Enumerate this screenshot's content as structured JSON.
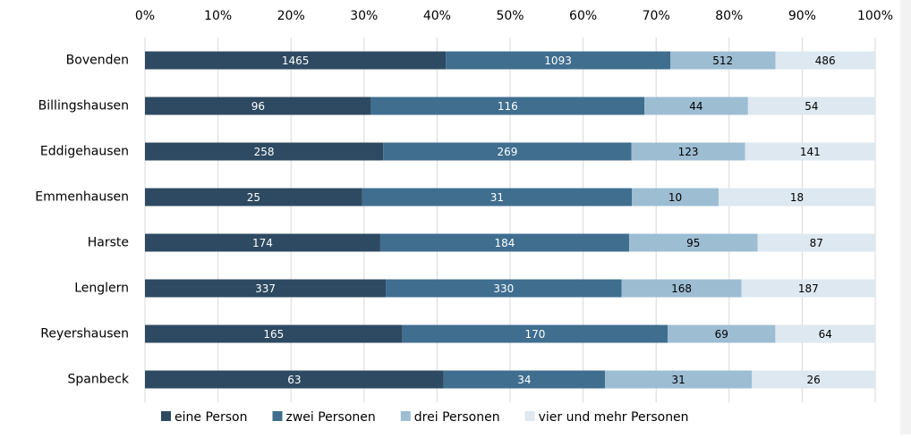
{
  "chart_data": {
    "type": "bar",
    "orientation": "horizontal",
    "stacking": "percent",
    "categories": [
      "Bovenden",
      "Billingshausen",
      "Eddigehausen",
      "Emmenhausen",
      "Harste",
      "Lenglern",
      "Reyershausen",
      "Spanbeck"
    ],
    "series": [
      {
        "name": "eine Person",
        "color": "#2e4a62",
        "values": [
          1465,
          96,
          258,
          25,
          174,
          337,
          165,
          63
        ]
      },
      {
        "name": "zwei Personen",
        "color": "#3f6e8f",
        "values": [
          1093,
          116,
          269,
          31,
          184,
          330,
          170,
          34
        ]
      },
      {
        "name": "drei Personen",
        "color": "#9dbdd3",
        "values": [
          512,
          44,
          123,
          10,
          95,
          168,
          69,
          31
        ]
      },
      {
        "name": "vier und mehr Personen",
        "color": "#dde8f0",
        "values": [
          486,
          54,
          141,
          18,
          87,
          187,
          64,
          26
        ]
      }
    ],
    "xlim": [
      0,
      100
    ],
    "xticks": [
      {
        "value": 0,
        "label": "0%"
      },
      {
        "value": 10,
        "label": "10%"
      },
      {
        "value": 20,
        "label": "20%"
      },
      {
        "value": 30,
        "label": "30%"
      },
      {
        "value": 40,
        "label": "40%"
      },
      {
        "value": 50,
        "label": "50%"
      },
      {
        "value": 60,
        "label": "60%"
      },
      {
        "value": 70,
        "label": "70%"
      },
      {
        "value": 80,
        "label": "80%"
      },
      {
        "value": 90,
        "label": "90%"
      },
      {
        "value": 100,
        "label": "100%"
      }
    ],
    "grid": true,
    "legend": "bottom"
  }
}
